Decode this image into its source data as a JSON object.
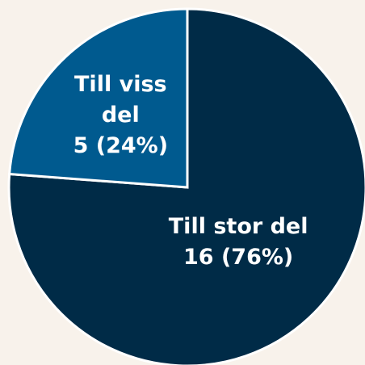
{
  "chart_data": {
    "type": "pie",
    "categories": [
      "Till stor del",
      "Till viss del"
    ],
    "values": [
      16,
      5
    ],
    "value_labels": [
      "16 (76%)",
      "5 (24%)"
    ],
    "colors": [
      "#002b47",
      "#005a8f"
    ]
  }
}
